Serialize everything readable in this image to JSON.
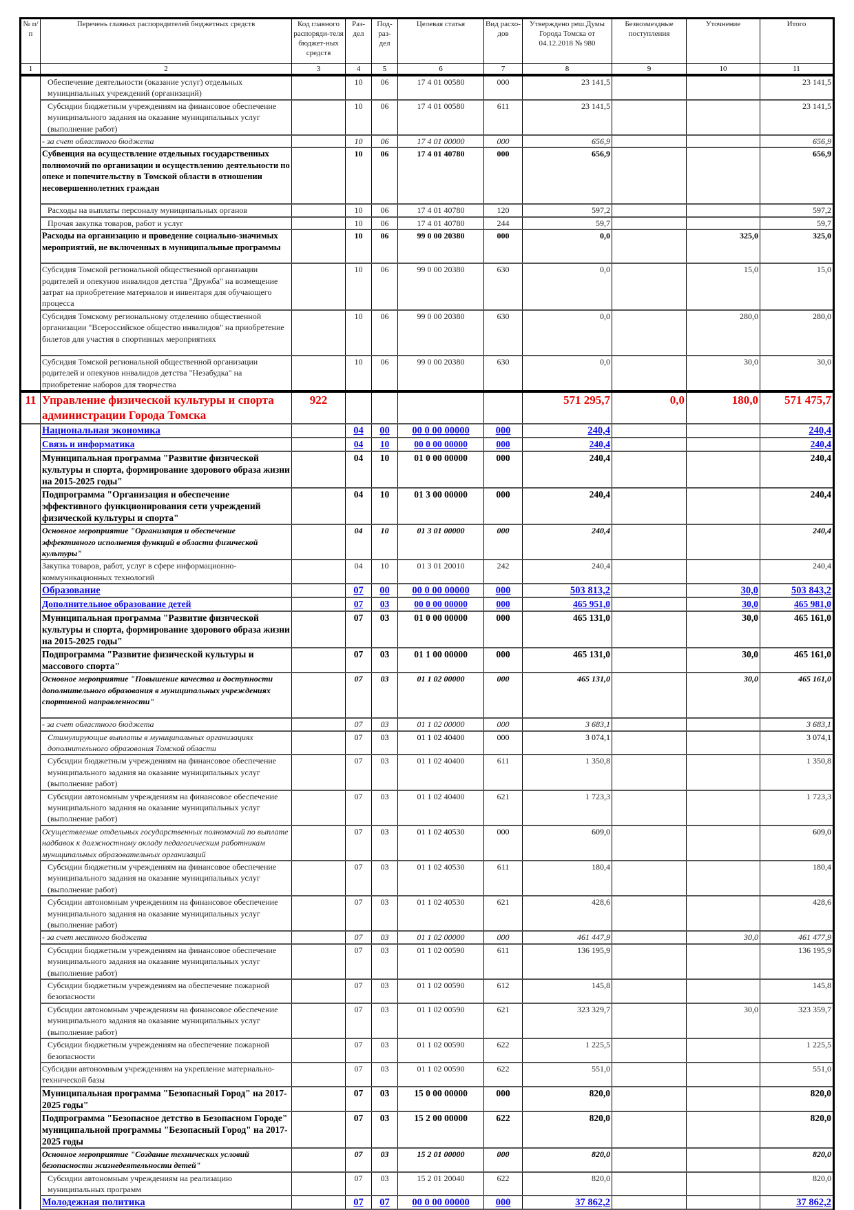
{
  "header": {
    "cols": [
      "№ п/п",
      "Перечень главных распорядителей бюджетных средств",
      "Код главного распоряди-теля бюджет-ных средств",
      "Раз-дел",
      "Под-раз-дел",
      "Целевая статья",
      "Вид расхо-дов",
      "Утверждено реш.Думы Города Томска от 04.12.2018 № 980",
      "Безвозмездные поступления",
      "Уточнение",
      "Итого"
    ],
    "nums": [
      "1",
      "2",
      "3",
      "4",
      "5",
      "6",
      "7",
      "8",
      "9",
      "10",
      "11"
    ]
  },
  "colors": {
    "department": "#e60000",
    "section": "#0a0ae6"
  },
  "rows": [
    {
      "level": "normal",
      "indent": true,
      "no": "",
      "name": "Обеспечение деятельности (оказание услуг) отдельных муниципальных учреждений (организаций)",
      "grbs": "",
      "rz": "10",
      "pr": "06",
      "cs": "17 4 01 00580",
      "vr": "000",
      "approved": "23 141,5",
      "free": "",
      "adj": "",
      "total": "23 141,5"
    },
    {
      "level": "normal",
      "indent": true,
      "no": "",
      "name": "Субсидии бюджетным учреждениям на финансовое обеспечение муниципального задания на оказание муниципальных услуг (выполнение работ)",
      "grbs": "",
      "rz": "10",
      "pr": "06",
      "cs": "17 4 01 00580",
      "vr": "611",
      "approved": "23 141,5",
      "free": "",
      "adj": "",
      "total": "23 141,5"
    },
    {
      "level": "italic",
      "indent": false,
      "no": "",
      "name": " - за счет областного бюджета",
      "grbs": "",
      "rz": "10",
      "pr": "06",
      "cs": "17 4 01 00000",
      "vr": "000",
      "approved": "656,9",
      "free": "",
      "adj": "",
      "total": "656,9"
    },
    {
      "level": "bold",
      "indent": false,
      "no": "",
      "name": "Субвенция на осуществление отдельных государственных полномочий по организации и осуществлению деятельности по опеке и попечительству в Томской области в отношении несовершеннолетних граждан",
      "grbs": "",
      "rz": "10",
      "pr": "06",
      "cs": "17 4 01 40780",
      "vr": "000",
      "approved": "656,9",
      "free": "",
      "adj": "",
      "total": "656,9"
    },
    {
      "level": "normal",
      "indent": true,
      "no": "",
      "name": "Расходы на выплаты персоналу муниципальных органов",
      "grbs": "",
      "rz": "10",
      "pr": "06",
      "cs": "17 4 01 40780",
      "vr": "120",
      "approved": "597,2",
      "free": "",
      "adj": "",
      "total": "597,2"
    },
    {
      "level": "normal",
      "indent": true,
      "no": "",
      "name": "Прочая закупка товаров, работ и услуг",
      "grbs": "",
      "rz": "10",
      "pr": "06",
      "cs": "17 4 01 40780",
      "vr": "244",
      "approved": "59,7",
      "free": "",
      "adj": "",
      "total": "59,7"
    },
    {
      "level": "bold",
      "indent": false,
      "no": "",
      "name": "Расходы на организацию и проведение социально-значимых мероприятий, не включенных в муниципальные программы",
      "grbs": "",
      "rz": "10",
      "pr": "06",
      "cs": "99 0 00 20380",
      "vr": "000",
      "approved": "0,0",
      "free": "",
      "adj": "325,0",
      "total": "325,0"
    },
    {
      "level": "normal",
      "indent": false,
      "no": "",
      "name": "Субсидия Томской региональной общественной организации родителей и опекунов инвалидов детства \"Дружба\" на возмещение затрат на приобретение материалов и инвентаря для обучающего процесса",
      "grbs": "",
      "rz": "10",
      "pr": "06",
      "cs": "99 0 00 20380",
      "vr": "630",
      "approved": "0,0",
      "free": "",
      "adj": "15,0",
      "total": "15,0"
    },
    {
      "level": "normal",
      "indent": false,
      "no": "",
      "name": "Субсидия Томскому региональному отделению общественной организации \"Всероссийское общество инвалидов\" на приобретение билетов для участия в спортивных мероприятиях",
      "grbs": "",
      "rz": "10",
      "pr": "06",
      "cs": "99 0 00 20380",
      "vr": "630",
      "approved": "0,0",
      "free": "",
      "adj": "280,0",
      "total": "280,0"
    },
    {
      "level": "normal",
      "indent": false,
      "no": "",
      "name": "Субсидия Томской региональной общественной организации родителей и опекунов инвалидов детства \"Незабудка\" на приобретение наборов для творчества",
      "grbs": "",
      "rz": "10",
      "pr": "06",
      "cs": "99 0 00 20380",
      "vr": "630",
      "approved": "0,0",
      "free": "",
      "adj": "30,0",
      "total": "30,0"
    },
    {
      "level": "dept",
      "indent": false,
      "no": "11",
      "name": "Управление физической культуры и спорта администрации Города Томска",
      "grbs": "922",
      "rz": "",
      "pr": "",
      "cs": "",
      "vr": "",
      "approved": "571 295,7",
      "free": "0,0",
      "adj": "180,0",
      "total": "571 475,7"
    },
    {
      "level": "section",
      "indent": false,
      "no": "",
      "name": "Национальная экономика",
      "grbs": "",
      "rz": "04",
      "pr": "00",
      "cs": "00 0 00 00000",
      "vr": "000",
      "approved": "240,4",
      "free": "",
      "adj": "",
      "total": "240,4"
    },
    {
      "level": "subsection",
      "indent": false,
      "no": "",
      "name": "Связь и информатика",
      "grbs": "",
      "rz": "04",
      "pr": "10",
      "cs": "00 0 00 00000",
      "vr": "000",
      "approved": "240,4",
      "free": "",
      "adj": "",
      "total": "240,4"
    },
    {
      "level": "prog",
      "indent": false,
      "no": "",
      "name": "Муниципальная программа \"Развитие физической культуры и спорта, формирование здорового образа жизни на 2015-2025 годы\"",
      "grbs": "",
      "rz": "04",
      "pr": "10",
      "cs": "01 0 00 00000",
      "vr": "000",
      "approved": "240,4",
      "free": "",
      "adj": "",
      "total": "240,4"
    },
    {
      "level": "prog",
      "indent": false,
      "no": "",
      "name": "Подпрограмма \"Организация и обеспечение эффективного функционирования сети учреждений физической культуры и спорта\"",
      "grbs": "",
      "rz": "04",
      "pr": "10",
      "cs": "01 3 00 00000",
      "vr": "000",
      "approved": "240,4",
      "free": "",
      "adj": "",
      "total": "240,4"
    },
    {
      "level": "bolditalic",
      "indent": false,
      "no": "",
      "name": " Основное мероприятие \"Организация и обеспечение эффективного исполнения функций в области физической культуры\"",
      "grbs": "",
      "rz": "04",
      "pr": "10",
      "cs": "01 3 01 00000",
      "vr": "000",
      "approved": "240,4",
      "free": "",
      "adj": "",
      "total": "240,4"
    },
    {
      "level": "normal",
      "indent": false,
      "no": "",
      "name": "Закупка товаров, работ, услуг в сфере информационно-коммуникационных технологий",
      "grbs": "",
      "rz": "04",
      "pr": "10",
      "cs": "01 3 01 20010",
      "vr": "242",
      "approved": "240,4",
      "free": "",
      "adj": "",
      "total": "240,4"
    },
    {
      "level": "section",
      "indent": false,
      "no": "",
      "name": "Образование",
      "grbs": "",
      "rz": "07",
      "pr": "00",
      "cs": "00 0 00 00000",
      "vr": "000",
      "approved": "503 813,2",
      "free": "",
      "adj": "30,0",
      "total": "503 843,2"
    },
    {
      "level": "subsection",
      "indent": false,
      "no": "",
      "name": "Дополнительное образование детей",
      "grbs": "",
      "rz": "07",
      "pr": "03",
      "cs": "00 0 00 00000",
      "vr": "000",
      "approved": "465 951,0",
      "free": "",
      "adj": "30,0",
      "total": "465 981,0"
    },
    {
      "level": "prog",
      "indent": false,
      "no": "",
      "name": "Муниципальная программа \"Развитие физической культуры и спорта, формирование здорового образа жизни на 2015-2025 годы\"",
      "grbs": "",
      "rz": "07",
      "pr": "03",
      "cs": "01 0 00 00000",
      "vr": "000",
      "approved": "465 131,0",
      "free": "",
      "adj": "30,0",
      "total": "465 161,0"
    },
    {
      "level": "prog",
      "indent": false,
      "no": "",
      "name": "Подпрограмма \"Развитие физической культуры и массового спорта\"",
      "grbs": "",
      "rz": "07",
      "pr": "03",
      "cs": "01 1 00 00000",
      "vr": "000",
      "approved": "465 131,0",
      "free": "",
      "adj": "30,0",
      "total": "465 161,0"
    },
    {
      "level": "bolditalic",
      "indent": false,
      "no": "",
      "name": " Основное мероприятие \"Повышение качества и доступности дополнительного образования в муниципальных учреждениях спортивной направленности\"",
      "grbs": "",
      "rz": "07",
      "pr": "03",
      "cs": "01 1 02 00000",
      "vr": "000",
      "approved": "465 131,0",
      "free": "",
      "adj": "30,0",
      "total": "465 161,0"
    },
    {
      "level": "italic",
      "indent": false,
      "no": "",
      "name": " - за счет областного бюджета",
      "grbs": "",
      "rz": "07",
      "pr": "03",
      "cs": "01 1 02 00000",
      "vr": "000",
      "approved": "3 683,1",
      "free": "",
      "adj": "",
      "total": "3 683,1"
    },
    {
      "level": "italicname",
      "indent": true,
      "no": "",
      "name": "Стимулирующие выплаты в муниципальных организациях дополнительного образования Томской области",
      "grbs": "",
      "rz": "07",
      "pr": "03",
      "cs": "01 1 02 40400",
      "vr": "000",
      "approved": "3 074,1",
      "free": "",
      "adj": "",
      "total": "3 074,1"
    },
    {
      "level": "normal",
      "indent": true,
      "no": "",
      "name": "Субсидии бюджетным учреждениям на финансовое обеспечение муниципального задания на оказание муниципальных услуг (выполнение работ)",
      "grbs": "",
      "rz": "07",
      "pr": "03",
      "cs": "01 1 02 40400",
      "vr": "611",
      "approved": "1 350,8",
      "free": "",
      "adj": "",
      "total": "1 350,8"
    },
    {
      "level": "normal",
      "indent": true,
      "no": "",
      "name": "Субсидии автономным учреждениям на финансовое обеспечение муниципального задания на оказание муниципальных услуг (выполнение работ)",
      "grbs": "",
      "rz": "07",
      "pr": "03",
      "cs": "01 1 02 40400",
      "vr": "621",
      "approved": "1 723,3",
      "free": "",
      "adj": "",
      "total": "1 723,3"
    },
    {
      "level": "italicname",
      "indent": false,
      "no": "",
      "name": " Осуществление отдельных государственных полномочий по выплате надбавок к должностному окладу педагогическим работникам муниципальных образовательных организаций",
      "grbs": "",
      "rz": "07",
      "pr": "03",
      "cs": "01 1 02 40530",
      "vr": "000",
      "approved": "609,0",
      "free": "",
      "adj": "",
      "total": "609,0"
    },
    {
      "level": "normal",
      "indent": true,
      "no": "",
      "name": "Субсидии бюджетным учреждениям на финансовое обеспечение муниципального задания на оказание муниципальных услуг (выполнение работ)",
      "grbs": "",
      "rz": "07",
      "pr": "03",
      "cs": "01 1 02 40530",
      "vr": "611",
      "approved": "180,4",
      "free": "",
      "adj": "",
      "total": "180,4"
    },
    {
      "level": "normal",
      "indent": true,
      "no": "",
      "name": "Субсидии автономным учреждениям на финансовое обеспечение муниципального задания на оказание муниципальных услуг (выполнение работ)",
      "grbs": "",
      "rz": "07",
      "pr": "03",
      "cs": "01 1 02 40530",
      "vr": "621",
      "approved": "428,6",
      "free": "",
      "adj": "",
      "total": "428,6"
    },
    {
      "level": "italic",
      "indent": false,
      "no": "",
      "name": " - за счет местного бюджета",
      "grbs": "",
      "rz": "07",
      "pr": "03",
      "cs": "01 1 02 00000",
      "vr": "000",
      "approved": "461 447,9",
      "free": "",
      "adj": "30,0",
      "total": "461 477,9"
    },
    {
      "level": "normal",
      "indent": true,
      "no": "",
      "name": "Субсидии бюджетным учреждениям на финансовое обеспечение муниципального задания на оказание муниципальных услуг (выполнение работ)",
      "grbs": "",
      "rz": "07",
      "pr": "03",
      "cs": "01 1 02 00590",
      "vr": "611",
      "approved": "136 195,9",
      "free": "",
      "adj": "",
      "total": "136 195,9"
    },
    {
      "level": "normal",
      "indent": true,
      "no": "",
      "name": "Субсидии бюджетным учреждениям на обеспечение пожарной безопасности",
      "grbs": "",
      "rz": "07",
      "pr": "03",
      "cs": "01 1 02 00590",
      "vr": "612",
      "approved": "145,8",
      "free": "",
      "adj": "",
      "total": "145,8"
    },
    {
      "level": "normal",
      "indent": true,
      "no": "",
      "name": "Субсидии автономным учреждениям на финансовое обеспечение муниципального задания на оказание муниципальных услуг (выполнение работ)",
      "grbs": "",
      "rz": "07",
      "pr": "03",
      "cs": "01 1 02 00590",
      "vr": "621",
      "approved": "323 329,7",
      "free": "",
      "adj": "30,0",
      "total": "323 359,7"
    },
    {
      "level": "normal",
      "indent": true,
      "no": "",
      "name": "Субсидии бюджетным учреждениям на обеспечение пожарной безопасности",
      "grbs": "",
      "rz": "07",
      "pr": "03",
      "cs": "01 1 02 00590",
      "vr": "622",
      "approved": "1 225,5",
      "free": "",
      "adj": "",
      "total": "1 225,5"
    },
    {
      "level": "normal",
      "indent": false,
      "no": "",
      "name": "Субсидии автономным учреждениям на укрепление материально-технической базы",
      "grbs": "",
      "rz": "07",
      "pr": "03",
      "cs": "01 1 02 00590",
      "vr": "622",
      "approved": "551,0",
      "free": "",
      "adj": "",
      "total": "551,0"
    },
    {
      "level": "prog",
      "indent": false,
      "no": "",
      "name": "Муниципальная программа \"Безопасный Город\" на 2017- 2025 годы\"",
      "grbs": "",
      "rz": "07",
      "pr": "03",
      "cs": "15 0 00 00000",
      "vr": "000",
      "approved": "820,0",
      "free": "",
      "adj": "",
      "total": "820,0"
    },
    {
      "level": "prog",
      "indent": false,
      "no": "",
      "name": "Подпрограмма \"Безопасное детство в Безопасном Городе\" муниципальной программы \"Безопасный Город\" на 2017-2025 годы",
      "grbs": "",
      "rz": "07",
      "pr": "03",
      "cs": "15 2 00 00000",
      "vr": "622",
      "approved": "820,0",
      "free": "",
      "adj": "",
      "total": "820,0"
    },
    {
      "level": "bolditalic",
      "indent": false,
      "no": "",
      "name": " Основное мероприятие \"Создание технических условий безопасности жизнедеятельности детей\"",
      "grbs": "",
      "rz": "07",
      "pr": "03",
      "cs": "15 2 01 00000",
      "vr": "000",
      "approved": "820,0",
      "free": "",
      "adj": "",
      "total": "820,0"
    },
    {
      "level": "normal",
      "indent": true,
      "no": "",
      "name": "Субсидии автономным учреждениям на реализацию муниципальных программ",
      "grbs": "",
      "rz": "07",
      "pr": "03",
      "cs": "15 2 01 20040",
      "vr": "622",
      "approved": "820,0",
      "free": "",
      "adj": "",
      "total": "820,0"
    },
    {
      "level": "section",
      "indent": false,
      "no": "",
      "name": "Молодежная политика",
      "grbs": "",
      "rz": "07",
      "pr": "07",
      "cs": "00 0 00 00000",
      "vr": "000",
      "approved": "37 862,2",
      "free": "",
      "adj": "",
      "total": "37 862,2"
    }
  ]
}
